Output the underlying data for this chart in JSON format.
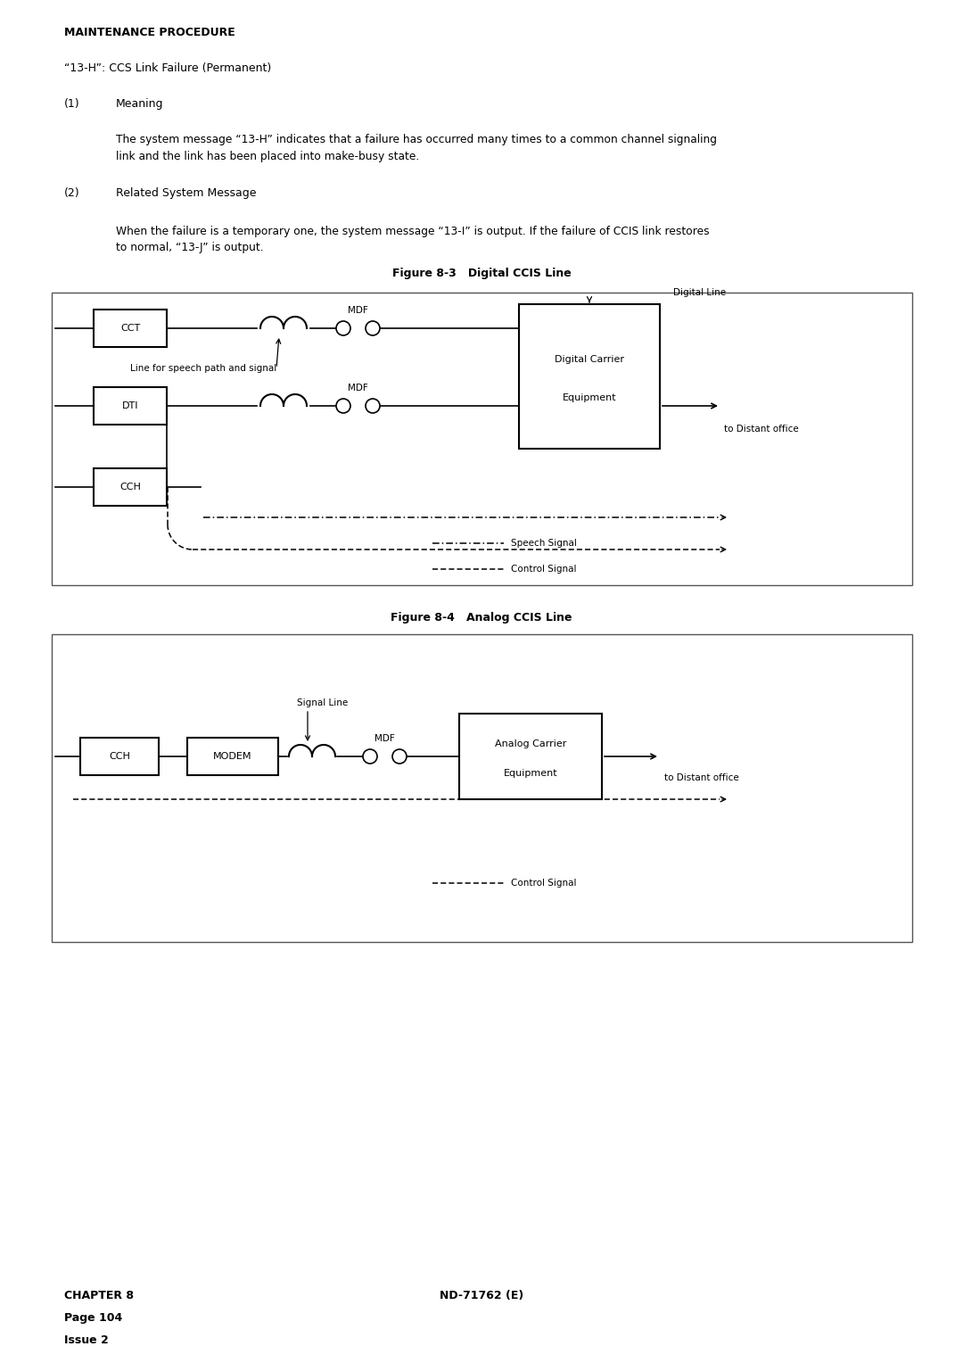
{
  "page_width": 10.8,
  "page_height": 15.28,
  "bg_color": "#ffffff",
  "text_color": "#000000",
  "title": "MAINTENANCE PROCEDURE",
  "subtitle": "“13-H”: CCS Link Failure (Permanent)",
  "section1_num": "(1)",
  "section1_title": "Meaning",
  "section1_body": "The system message “13-H” indicates that a failure has occurred many times to a common channel signaling\nlink and the link has been placed into make-busy state.",
  "section2_num": "(2)",
  "section2_title": "Related System Message",
  "section2_body": "When the failure is a temporary one, the system message “13-I” is output. If the failure of CCIS link restores\nto normal, “13-J” is output.",
  "fig3_title": "Figure 8-3   Digital CCIS Line",
  "fig4_title": "Figure 8-4   Analog CCIS Line",
  "footer_left1": "CHAPTER 8",
  "footer_left2": "Page 104",
  "footer_left3": "Issue 2",
  "footer_right": "ND-71762 (E)"
}
